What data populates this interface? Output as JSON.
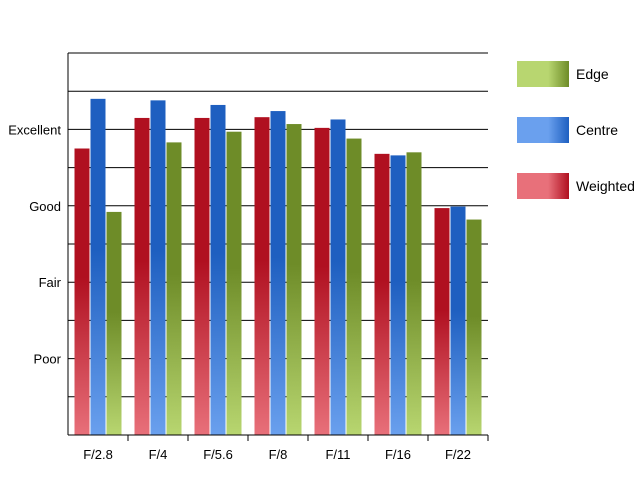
{
  "chart_data": {
    "type": "bar",
    "title": "",
    "xlabel": "",
    "ylabel": "",
    "categories": [
      "F/2.8",
      "F/4",
      "F/5.6",
      "F/8",
      "F/11",
      "F/16",
      "F/22"
    ],
    "y_tick_labels": [
      {
        "label": "Poor",
        "value": 1
      },
      {
        "label": "Fair",
        "value": 2
      },
      {
        "label": "Good",
        "value": 3
      },
      {
        "label": "Excellent",
        "value": 4
      }
    ],
    "ylim": [
      0,
      5
    ],
    "grid_step": 0.5,
    "grid": true,
    "legend_position": "right",
    "series": [
      {
        "name": "Weighted",
        "values": [
          3.75,
          4.15,
          4.15,
          4.16,
          4.02,
          3.68,
          2.97
        ],
        "color_dark": "#b01020",
        "color_light": "#e8707a"
      },
      {
        "name": "Centre",
        "values": [
          4.4,
          4.38,
          4.32,
          4.24,
          4.13,
          3.66,
          2.99
        ],
        "color_dark": "#1e5fc0",
        "color_light": "#6aa0ee"
      },
      {
        "name": "Edge",
        "values": [
          2.92,
          3.83,
          3.97,
          4.07,
          3.88,
          3.7,
          2.82
        ],
        "color_dark": "#6e8c28",
        "color_light": "#b8d670"
      }
    ],
    "legend_order": [
      "Edge",
      "Centre",
      "Weighted"
    ]
  }
}
